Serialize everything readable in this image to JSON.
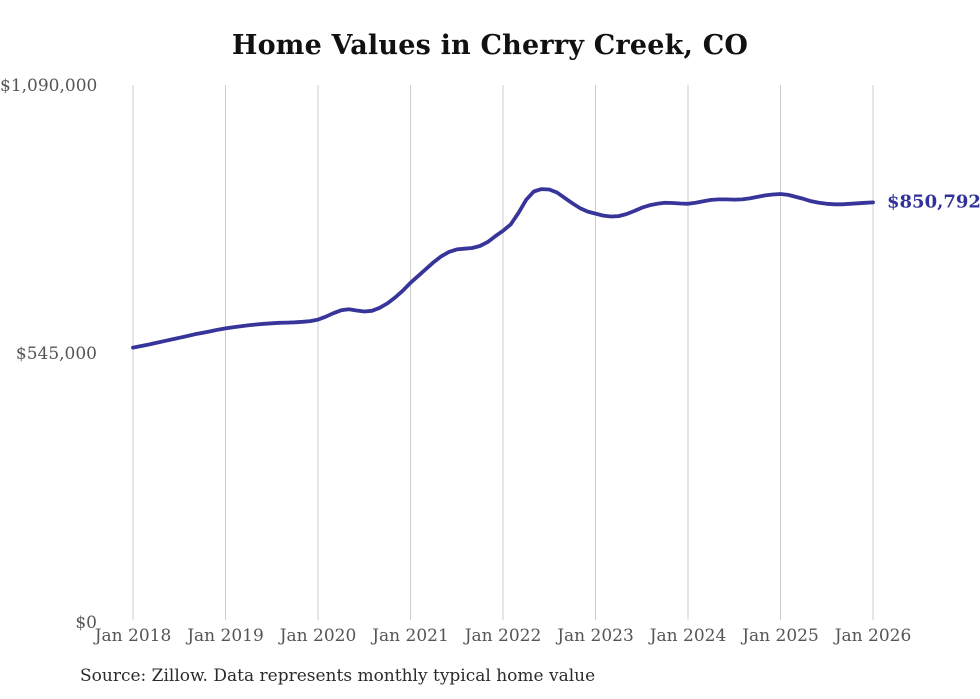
{
  "title": "Home Values in Cherry Creek, CO",
  "source_note": "Source: Zillow. Data represents monthly typical home value",
  "end_label": "$850,792",
  "colors": {
    "line": "#37359a",
    "end_label": "#31319b",
    "grid": "#cccccc",
    "axis_text": "#555555",
    "title_text": "#111111",
    "source_text": "#2b2b2b",
    "background": "#ffffff"
  },
  "chart_data": {
    "type": "line",
    "title": "Home Values in Cherry Creek, CO",
    "xlabel": "",
    "ylabel": "",
    "grid": "vertical-only",
    "legend": "none",
    "ylim": [
      0,
      1090000
    ],
    "x_ticks": [
      "Jan 2018",
      "Jan 2019",
      "Jan 2020",
      "Jan 2021",
      "Jan 2022",
      "Jan 2023",
      "Jan 2024",
      "Jan 2025",
      "Jan 2026"
    ],
    "y_ticks": [
      {
        "label": "$1,090,000",
        "value": 1090000
      },
      {
        "label": "$545,000",
        "value": 545000
      },
      {
        "label": "$0",
        "value": 0
      }
    ],
    "series": [
      {
        "name": "Typical home value",
        "start": "2018-01",
        "end": "2026-01",
        "frequency": "monthly",
        "final_value": 850792,
        "values": [
          555000,
          558000,
          561000,
          564500,
          568000,
          571500,
          575000,
          578500,
          582000,
          585000,
          588000,
          591500,
          594000,
          596500,
          598500,
          600500,
          602000,
          603500,
          604500,
          605500,
          606000,
          606500,
          607500,
          609000,
          612000,
          618000,
          625000,
          631000,
          633000,
          630500,
          628500,
          630000,
          636000,
          645000,
          657000,
          671000,
          687000,
          701000,
          715000,
          729000,
          741000,
          750000,
          755000,
          756500,
          758000,
          762000,
          770000,
          782000,
          793000,
          806000,
          829000,
          856000,
          873000,
          878000,
          877000,
          871000,
          860000,
          849000,
          839000,
          832000,
          828000,
          824000,
          822000,
          823000,
          827000,
          833000,
          840000,
          845000,
          848000,
          850000,
          849500,
          848500,
          848000,
          850000,
          853000,
          856000,
          857000,
          857000,
          856500,
          857000,
          859000,
          862000,
          865000,
          867000,
          868000,
          866000,
          862000,
          858000,
          853000,
          850000,
          848000,
          847000,
          847000,
          848000,
          849000,
          850000,
          850792
        ]
      }
    ]
  }
}
